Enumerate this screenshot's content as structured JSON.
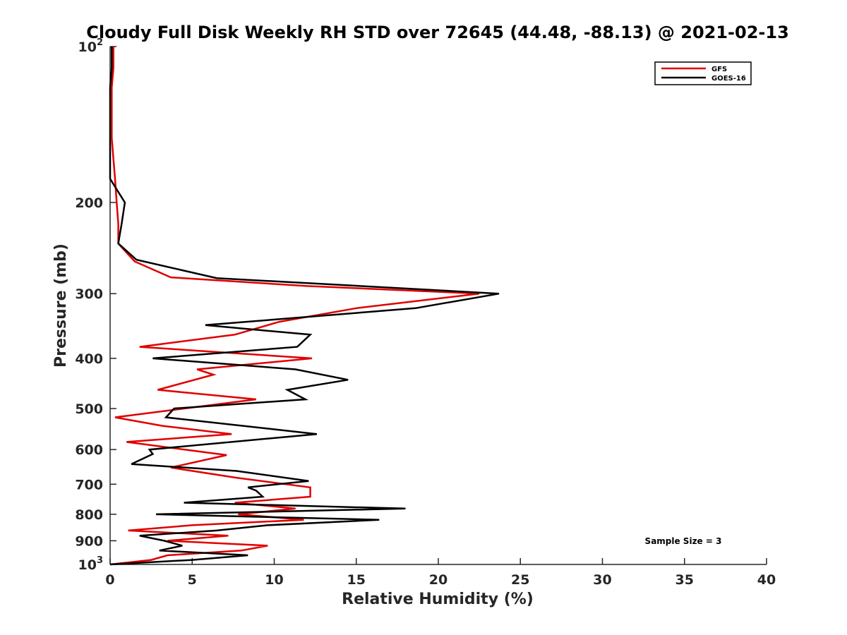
{
  "chart_data": {
    "type": "line",
    "title": "Cloudy Full Disk Weekly RH STD over 72645 (44.48, -88.13) @ 2021-02-13",
    "xlabel": "Relative Humidity (%)",
    "ylabel": "Pressure (mb)",
    "xlim": [
      0,
      40
    ],
    "ylim": [
      100,
      1000
    ],
    "y_scale": "log",
    "y_reversed": true,
    "grid": false,
    "legend_position": "top-right",
    "x_ticks": [
      "0",
      "5",
      "10",
      "15",
      "20",
      "25",
      "30",
      "35",
      "40"
    ],
    "y_ticks": [
      {
        "value": 100,
        "label": "10",
        "sup": "2"
      },
      {
        "value": 200,
        "label": "200",
        "sup": ""
      },
      {
        "value": 300,
        "label": "300",
        "sup": ""
      },
      {
        "value": 400,
        "label": "400",
        "sup": ""
      },
      {
        "value": 500,
        "label": "500",
        "sup": ""
      },
      {
        "value": 600,
        "label": "600",
        "sup": ""
      },
      {
        "value": 700,
        "label": "700",
        "sup": ""
      },
      {
        "value": 800,
        "label": "800",
        "sup": ""
      },
      {
        "value": 900,
        "label": "900",
        "sup": ""
      },
      {
        "value": 1000,
        "label": "10",
        "sup": "3"
      }
    ],
    "series": [
      {
        "name": "GFS",
        "color": "#e00000",
        "points": [
          [
            0.2,
            100
          ],
          [
            0.2,
            110
          ],
          [
            0.1,
            120
          ],
          [
            0.1,
            135
          ],
          [
            0.1,
            150
          ],
          [
            0.2,
            165
          ],
          [
            0.3,
            180
          ],
          [
            0.4,
            200
          ],
          [
            0.5,
            220
          ],
          [
            0.5,
            240
          ],
          [
            1.0,
            250
          ],
          [
            1.5,
            260
          ],
          [
            3.7,
            279
          ],
          [
            12.0,
            290
          ],
          [
            22.5,
            300
          ],
          [
            15.0,
            320
          ],
          [
            10.3,
            340
          ],
          [
            7.6,
            360
          ],
          [
            1.8,
            380
          ],
          [
            12.3,
            400
          ],
          [
            5.3,
            420
          ],
          [
            6.3,
            430
          ],
          [
            2.9,
            460
          ],
          [
            8.9,
            480
          ],
          [
            0.3,
            520
          ],
          [
            3.2,
            540
          ],
          [
            7.4,
            560
          ],
          [
            1.0,
            580
          ],
          [
            7.1,
            615
          ],
          [
            3.7,
            650
          ],
          [
            7.7,
            680
          ],
          [
            12.2,
            710
          ],
          [
            12.2,
            740
          ],
          [
            7.6,
            760
          ],
          [
            11.3,
            780
          ],
          [
            7.8,
            800
          ],
          [
            11.8,
            820
          ],
          [
            5.0,
            840
          ],
          [
            1.1,
            860
          ],
          [
            7.2,
            880
          ],
          [
            3.5,
            900
          ],
          [
            9.6,
            920
          ],
          [
            8.0,
            940
          ],
          [
            3.5,
            960
          ],
          [
            2.5,
            980
          ],
          [
            0.0,
            1000
          ]
        ]
      },
      {
        "name": "GOES-16",
        "color": "#000000",
        "points": [
          [
            0.1,
            100
          ],
          [
            0.1,
            110
          ],
          [
            0.0,
            120
          ],
          [
            0.0,
            135
          ],
          [
            0.0,
            150
          ],
          [
            0.0,
            165
          ],
          [
            0.0,
            180
          ],
          [
            0.9,
            200
          ],
          [
            0.7,
            220
          ],
          [
            0.5,
            240
          ],
          [
            1.6,
            258
          ],
          [
            6.5,
            280
          ],
          [
            23.7,
            300
          ],
          [
            18.6,
            320
          ],
          [
            5.8,
            345
          ],
          [
            12.2,
            360
          ],
          [
            11.4,
            380
          ],
          [
            2.6,
            400
          ],
          [
            11.3,
            420
          ],
          [
            14.5,
            440
          ],
          [
            10.8,
            460
          ],
          [
            11.9,
            480
          ],
          [
            3.9,
            500
          ],
          [
            3.4,
            520
          ],
          [
            12.6,
            560
          ],
          [
            2.4,
            600
          ],
          [
            2.6,
            612
          ],
          [
            1.3,
            640
          ],
          [
            7.7,
            660
          ],
          [
            12.1,
            690
          ],
          [
            8.4,
            710
          ],
          [
            8.9,
            720
          ],
          [
            9.3,
            740
          ],
          [
            4.5,
            760
          ],
          [
            18.0,
            780
          ],
          [
            2.8,
            800
          ],
          [
            16.4,
            820
          ],
          [
            9.6,
            840
          ],
          [
            6.5,
            860
          ],
          [
            1.8,
            880
          ],
          [
            3.3,
            900
          ],
          [
            4.4,
            920
          ],
          [
            3.0,
            940
          ],
          [
            8.4,
            960
          ],
          [
            5.0,
            980
          ],
          [
            0.0,
            1000
          ]
        ]
      }
    ],
    "annotation": "Sample Size = 3"
  }
}
